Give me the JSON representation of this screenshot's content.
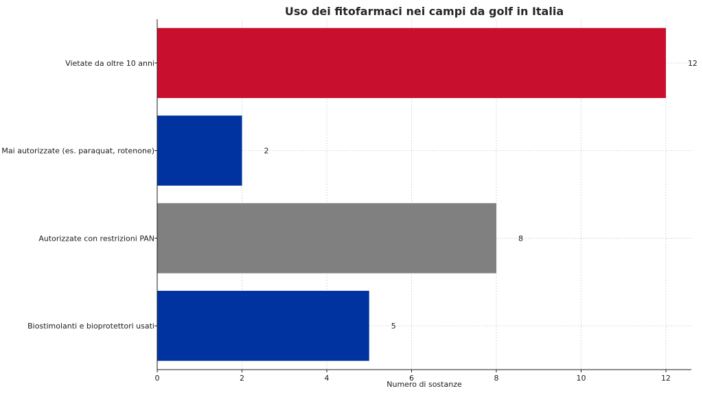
{
  "chart_data": {
    "type": "bar",
    "orientation": "horizontal",
    "title": "Uso dei fitofarmaci nei campi da golf in Italia",
    "xlabel": "Numero di sostanze",
    "ylabel": "",
    "categories": [
      "Vietate da oltre 10 anni",
      "Mai autorizzate (es. paraquat, rotenone)",
      "Autorizzate con restrizioni PAN",
      "Biostimolanti e bioprotettori usati"
    ],
    "values": [
      12,
      2,
      8,
      5
    ],
    "value_labels": [
      "12",
      "2",
      "8",
      "5"
    ],
    "colors": [
      "#c8102e",
      "#0033a0",
      "#808080",
      "#0033a0"
    ],
    "xlim": [
      0,
      12.6
    ],
    "xticks": [
      0,
      2,
      4,
      6,
      8,
      10,
      12
    ],
    "xtick_labels": [
      "0",
      "2",
      "4",
      "6",
      "8",
      "10",
      "12"
    ],
    "grid": true
  }
}
